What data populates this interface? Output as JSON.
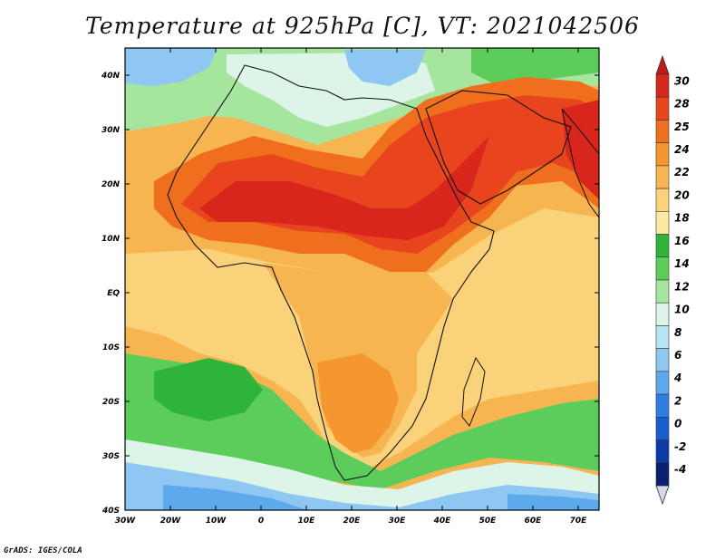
{
  "title": "Temperature at 925hPa [C], VT: 2021042506",
  "credit": "GrADS: IGES/COLA",
  "map": {
    "lon_range": [
      -30,
      75
    ],
    "lat_range": [
      -40,
      45
    ],
    "lon_ticks": [
      "30W",
      "20W",
      "10W",
      "0",
      "10E",
      "20E",
      "30E",
      "40E",
      "50E",
      "60E",
      "70E"
    ],
    "lat_ticks": [
      "40N",
      "30N",
      "20N",
      "10N",
      "EQ",
      "10S",
      "20S",
      "30S",
      "40S"
    ]
  },
  "colorbar": {
    "labels": [
      "30",
      "28",
      "25",
      "24",
      "22",
      "20",
      "18",
      "16",
      "14",
      "12",
      "10",
      "8",
      "6",
      "4",
      "2",
      "0",
      "-2",
      "-4"
    ],
    "colors": [
      "#d8261c",
      "#e8451f",
      "#f06f1f",
      "#f5962e",
      "#f7b552",
      "#fad27a",
      "#fbeaa3",
      "#2fb43a",
      "#5ccc5a",
      "#a6e59e",
      "#dcf5e8",
      "#b7e4f7",
      "#8ec8f2",
      "#5ea9ec",
      "#2f7fe3",
      "#185ed2",
      "#0d3aa5",
      "#0b1f70"
    ],
    "top_arrow_color": "#c21a16",
    "bottom_arrow_color": "#d6d6ef"
  }
}
